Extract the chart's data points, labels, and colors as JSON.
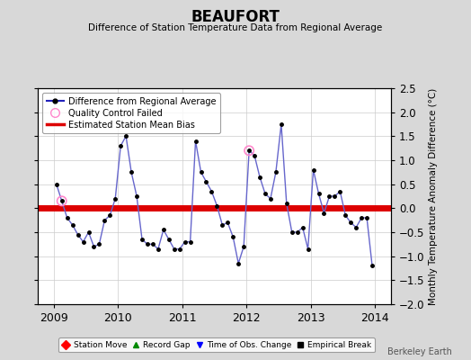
{
  "title": "BEAUFORT",
  "subtitle": "Difference of Station Temperature Data from Regional Average",
  "ylabel": "Monthly Temperature Anomaly Difference (°C)",
  "bias": 0.0,
  "ylim": [
    -2.0,
    2.5
  ],
  "yticks": [
    -2.0,
    -1.5,
    -1.0,
    -0.5,
    0.0,
    0.5,
    1.0,
    1.5,
    2.0,
    2.5
  ],
  "xlim_start": 2008.75,
  "xlim_end": 2014.25,
  "background_color": "#d8d8d8",
  "plot_bg_color": "#ffffff",
  "line_color": "#6666cc",
  "marker_color": "#000000",
  "bias_color": "#dd0000",
  "footer": "Berkeley Earth",
  "times": [
    2009.042,
    2009.125,
    2009.208,
    2009.292,
    2009.375,
    2009.458,
    2009.542,
    2009.625,
    2009.708,
    2009.792,
    2009.875,
    2009.958,
    2010.042,
    2010.125,
    2010.208,
    2010.292,
    2010.375,
    2010.458,
    2010.542,
    2010.625,
    2010.708,
    2010.792,
    2010.875,
    2010.958,
    2011.042,
    2011.125,
    2011.208,
    2011.292,
    2011.375,
    2011.458,
    2011.542,
    2011.625,
    2011.708,
    2011.792,
    2011.875,
    2011.958,
    2012.042,
    2012.125,
    2012.208,
    2012.292,
    2012.375,
    2012.458,
    2012.542,
    2012.625,
    2012.708,
    2012.792,
    2012.875,
    2012.958,
    2013.042,
    2013.125,
    2013.208,
    2013.292,
    2013.375,
    2013.458,
    2013.542,
    2013.625,
    2013.708,
    2013.792,
    2013.875,
    2013.958
  ],
  "values": [
    0.5,
    0.15,
    -0.2,
    -0.35,
    -0.55,
    -0.7,
    -0.5,
    -0.8,
    -0.75,
    -0.25,
    -0.15,
    0.2,
    1.3,
    1.5,
    0.75,
    0.25,
    -0.65,
    -0.75,
    -0.75,
    -0.85,
    -0.45,
    -0.65,
    -0.85,
    -0.85,
    -0.7,
    -0.7,
    1.4,
    0.75,
    0.55,
    0.35,
    0.05,
    -0.35,
    -0.3,
    -0.6,
    -1.15,
    -0.8,
    1.2,
    1.1,
    0.65,
    0.3,
    0.2,
    0.75,
    1.75,
    0.1,
    -0.5,
    -0.5,
    -0.4,
    -0.85,
    0.8,
    0.3,
    -0.1,
    0.25,
    0.25,
    0.35,
    -0.15,
    -0.3,
    -0.4,
    -0.2,
    -0.2,
    -1.2
  ],
  "qc_failed_indices": [
    1,
    36
  ],
  "legend_line_color": "#2222bb",
  "legend_qc_color": "#ff88cc",
  "grid_color": "#cccccc",
  "xtick_positions": [
    2009,
    2010,
    2011,
    2012,
    2013,
    2014
  ],
  "xtick_labels": [
    "2009",
    "2010",
    "2011",
    "2012",
    "2013",
    "2014"
  ]
}
